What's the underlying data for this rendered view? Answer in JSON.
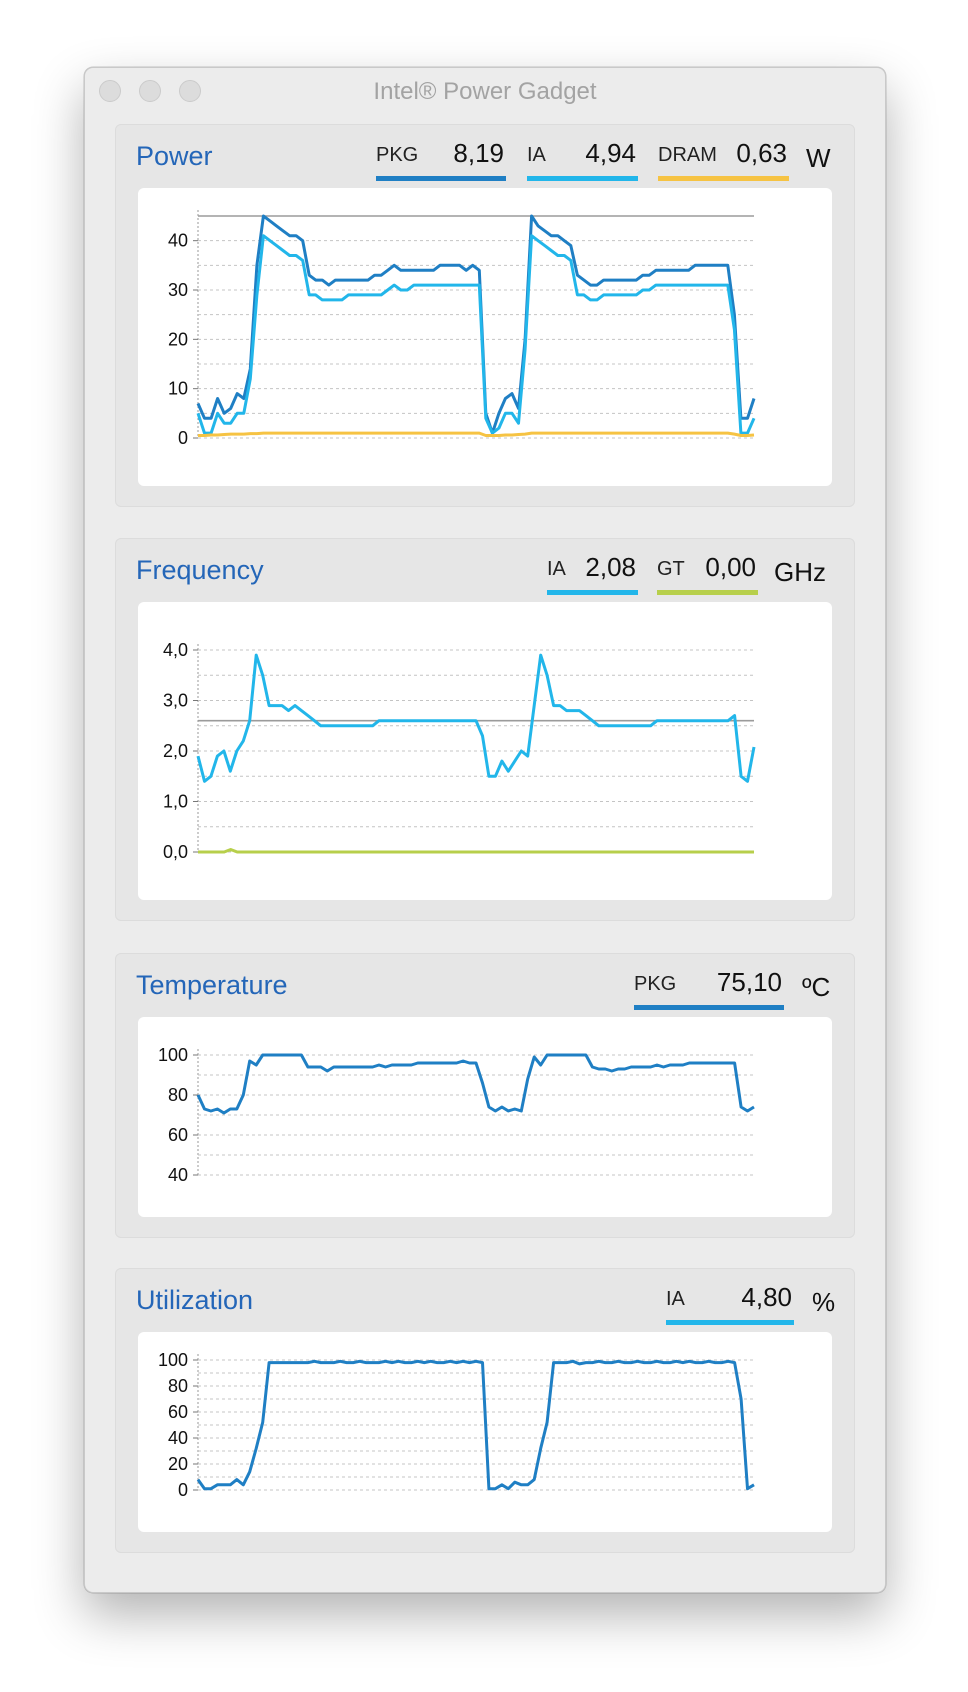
{
  "window": {
    "title": "Intel® Power Gadget"
  },
  "colors": {
    "pkg": "#1f7fc4",
    "ia": "#22b6ea",
    "dram": "#f6c343",
    "gt": "#b7cf4b",
    "title_blue": "#2466b8"
  },
  "power": {
    "title": "Power",
    "unit": "W",
    "indicators": [
      {
        "label": "PKG",
        "value": "8,19"
      },
      {
        "label": "IA",
        "value": "4,94"
      },
      {
        "label": "DRAM",
        "value": "0,63"
      }
    ]
  },
  "frequency": {
    "title": "Frequency",
    "unit": "GHz",
    "indicators": [
      {
        "label": "IA",
        "value": "2,08"
      },
      {
        "label": "GT",
        "value": "0,00"
      }
    ]
  },
  "temperature": {
    "title": "Temperature",
    "unit": "ºC",
    "indicators": [
      {
        "label": "PKG",
        "value": "75,10"
      }
    ]
  },
  "utilization": {
    "title": "Utilization",
    "unit": "%",
    "indicators": [
      {
        "label": "IA",
        "value": "4,80"
      }
    ]
  },
  "chart_data": [
    {
      "type": "line",
      "ylim": [
        0,
        45
      ],
      "yticks": [
        "0",
        "10",
        "20",
        "30",
        "40"
      ],
      "ytick_values": [
        0,
        10,
        20,
        30,
        40
      ],
      "reference_line": 45,
      "series": [
        {
          "color_key": "pkg",
          "values": [
            7,
            4,
            4,
            8,
            5,
            6,
            9,
            8,
            14,
            35,
            45,
            44,
            43,
            42,
            41,
            41,
            40,
            33,
            32,
            32,
            31,
            32,
            32,
            32,
            32,
            32,
            32,
            33,
            33,
            34,
            35,
            34,
            34,
            34,
            34,
            34,
            34,
            35,
            35,
            35,
            35,
            34,
            35,
            34,
            5,
            1,
            5,
            8,
            9,
            6,
            20,
            45,
            43,
            42,
            41,
            41,
            40,
            39,
            33,
            32,
            31,
            31,
            32,
            32,
            32,
            32,
            32,
            32,
            33,
            33,
            34,
            34,
            34,
            34,
            34,
            34,
            35,
            35,
            35,
            35,
            35,
            35,
            25,
            4,
            4,
            8
          ]
        },
        {
          "color_key": "ia",
          "values": [
            5,
            1,
            1,
            5,
            3,
            3,
            5,
            5,
            12,
            29,
            41,
            40,
            39,
            38,
            37,
            37,
            36,
            29,
            29,
            28,
            28,
            28,
            28,
            29,
            29,
            29,
            29,
            29,
            29,
            30,
            31,
            30,
            30,
            31,
            31,
            31,
            31,
            31,
            31,
            31,
            31,
            31,
            31,
            31,
            4,
            1,
            2,
            5,
            5,
            3,
            18,
            41,
            40,
            39,
            38,
            37,
            37,
            36,
            29,
            29,
            28,
            28,
            29,
            29,
            29,
            29,
            29,
            29,
            30,
            30,
            31,
            31,
            31,
            31,
            31,
            31,
            31,
            31,
            31,
            31,
            31,
            31,
            22,
            1,
            1,
            4
          ]
        },
        {
          "color_key": "dram",
          "values": [
            0.5,
            0.5,
            0.6,
            0.6,
            0.7,
            0.8,
            0.8,
            0.8,
            0.9,
            0.9,
            1,
            1,
            1,
            1,
            1,
            1,
            1,
            1,
            1,
            1,
            1,
            1,
            1,
            1,
            1,
            1,
            1,
            1,
            1,
            1,
            1,
            1,
            1,
            1,
            1,
            1,
            1,
            1,
            1,
            1,
            1,
            1,
            1,
            1,
            0.5,
            0.5,
            0.5,
            0.6,
            0.6,
            0.7,
            0.8,
            1,
            1,
            1,
            1,
            1,
            1,
            1,
            1,
            1,
            1,
            1,
            1,
            1,
            1,
            1,
            1,
            1,
            1,
            1,
            1,
            1,
            1,
            1,
            1,
            1,
            1,
            1,
            1,
            1,
            1,
            1,
            0.8,
            0.5,
            0.5,
            0.6
          ]
        }
      ]
    },
    {
      "type": "line",
      "ylim": [
        0,
        4
      ],
      "yticks": [
        "0,0",
        "1,0",
        "2,0",
        "3,0",
        "4,0"
      ],
      "ytick_values": [
        0,
        1,
        2,
        3,
        4
      ],
      "reference_line": 2.6,
      "series": [
        {
          "color_key": "ia",
          "values": [
            1.9,
            1.4,
            1.5,
            1.9,
            2.0,
            1.6,
            2.0,
            2.2,
            2.6,
            3.9,
            3.5,
            2.9,
            2.9,
            2.9,
            2.8,
            2.9,
            2.8,
            2.7,
            2.6,
            2.5,
            2.5,
            2.5,
            2.5,
            2.5,
            2.5,
            2.5,
            2.5,
            2.5,
            2.6,
            2.6,
            2.6,
            2.6,
            2.6,
            2.6,
            2.6,
            2.6,
            2.6,
            2.6,
            2.6,
            2.6,
            2.6,
            2.6,
            2.6,
            2.6,
            2.3,
            1.5,
            1.5,
            1.8,
            1.6,
            1.8,
            2.0,
            1.9,
            2.9,
            3.9,
            3.5,
            2.9,
            2.9,
            2.8,
            2.8,
            2.8,
            2.7,
            2.6,
            2.5,
            2.5,
            2.5,
            2.5,
            2.5,
            2.5,
            2.5,
            2.5,
            2.5,
            2.6,
            2.6,
            2.6,
            2.6,
            2.6,
            2.6,
            2.6,
            2.6,
            2.6,
            2.6,
            2.6,
            2.6,
            2.7,
            1.5,
            1.4,
            2.08
          ]
        },
        {
          "color_key": "gt",
          "values": [
            0,
            0,
            0,
            0,
            0,
            0.05,
            0,
            0,
            0,
            0,
            0,
            0,
            0,
            0,
            0,
            0,
            0,
            0,
            0,
            0,
            0,
            0,
            0,
            0,
            0,
            0,
            0,
            0,
            0,
            0,
            0,
            0,
            0,
            0,
            0,
            0,
            0,
            0,
            0,
            0,
            0,
            0,
            0,
            0,
            0,
            0,
            0,
            0,
            0,
            0,
            0,
            0,
            0,
            0,
            0,
            0,
            0,
            0,
            0,
            0,
            0,
            0,
            0,
            0,
            0,
            0,
            0,
            0,
            0,
            0,
            0,
            0,
            0,
            0,
            0,
            0,
            0,
            0,
            0,
            0,
            0,
            0,
            0,
            0,
            0,
            0
          ]
        }
      ]
    },
    {
      "type": "line",
      "ylim": [
        40,
        100
      ],
      "yticks": [
        "40",
        "60",
        "80",
        "100"
      ],
      "ytick_values": [
        40,
        60,
        80,
        100
      ],
      "series": [
        {
          "color_key": "pkg",
          "values": [
            80,
            73,
            72,
            73,
            71,
            73,
            73,
            80,
            97,
            95,
            100,
            100,
            100,
            100,
            100,
            100,
            100,
            94,
            94,
            94,
            92,
            94,
            94,
            94,
            94,
            94,
            94,
            94,
            95,
            94,
            95,
            95,
            95,
            95,
            96,
            96,
            96,
            96,
            96,
            96,
            96,
            97,
            96,
            96,
            86,
            74,
            72,
            74,
            72,
            73,
            72,
            88,
            99,
            95,
            100,
            100,
            100,
            100,
            100,
            100,
            100,
            94,
            93,
            93,
            92,
            93,
            93,
            94,
            94,
            94,
            94,
            95,
            94,
            95,
            95,
            95,
            96,
            96,
            96,
            96,
            96,
            96,
            96,
            96,
            74,
            72,
            74
          ]
        }
      ]
    },
    {
      "type": "line",
      "ylim": [
        0,
        100
      ],
      "yticks": [
        "0",
        "20",
        "40",
        "60",
        "80",
        "100"
      ],
      "ytick_values": [
        0,
        20,
        40,
        60,
        80,
        100
      ],
      "series": [
        {
          "color_key": "pkg",
          "values": [
            8,
            1,
            1,
            4,
            4,
            4,
            8,
            4,
            14,
            32,
            52,
            98,
            98,
            98,
            98,
            98,
            98,
            98,
            99,
            98,
            98,
            98,
            99,
            98,
            98,
            99,
            98,
            98,
            98,
            99,
            98,
            99,
            98,
            98,
            99,
            98,
            99,
            98,
            98,
            99,
            98,
            99,
            98,
            99,
            98,
            1,
            1,
            4,
            1,
            6,
            4,
            4,
            8,
            32,
            52,
            98,
            98,
            98,
            99,
            97,
            98,
            98,
            99,
            98,
            98,
            99,
            98,
            98,
            99,
            98,
            98,
            99,
            98,
            98,
            99,
            98,
            99,
            98,
            98,
            99,
            98,
            98,
            99,
            98,
            70,
            1,
            4
          ]
        }
      ]
    }
  ]
}
